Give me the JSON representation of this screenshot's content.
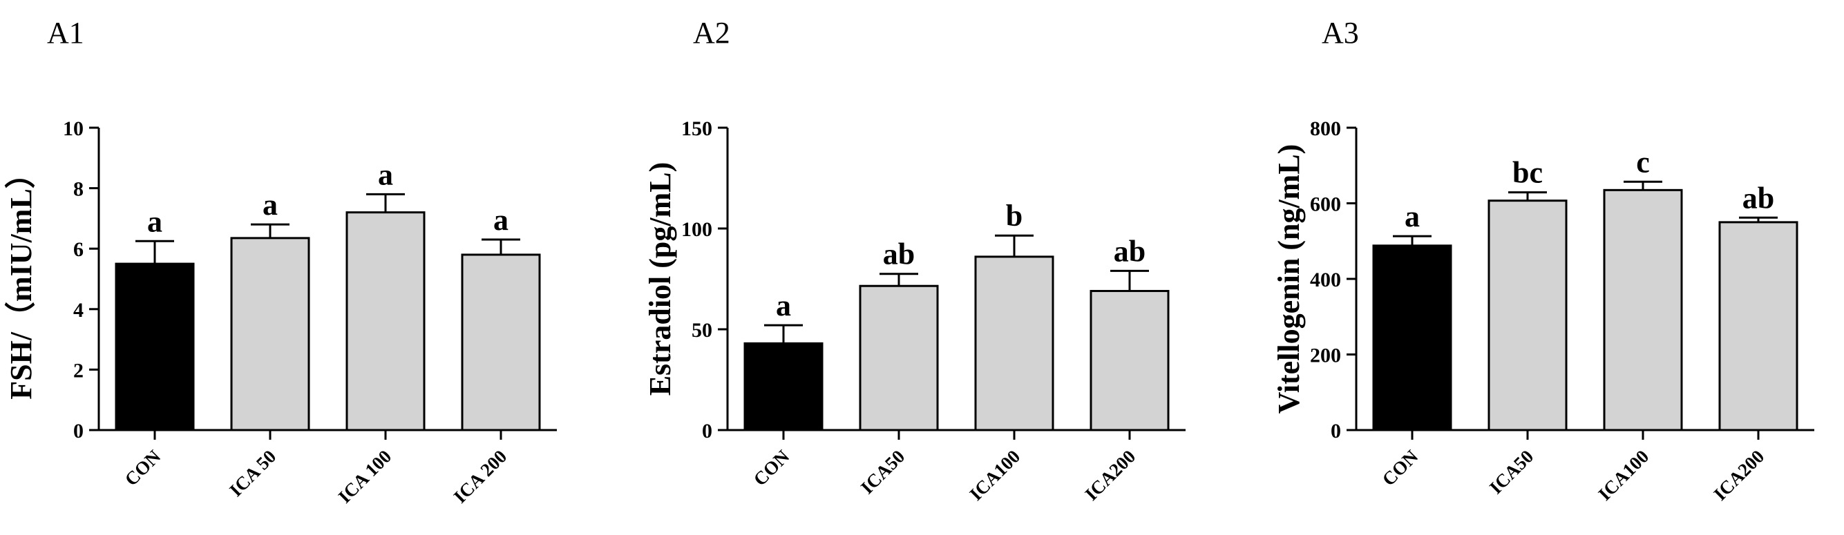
{
  "chart_data": [
    {
      "type": "bar",
      "panel_label": "A1",
      "ylabel": "FSH/（mIU/mL）",
      "categories": [
        "CON",
        "ICA 50",
        "ICA 100",
        "ICA 200"
      ],
      "values": [
        5.5,
        6.35,
        7.2,
        5.8
      ],
      "errors": [
        0.75,
        0.45,
        0.6,
        0.5
      ],
      "significance": [
        "a",
        "a",
        "a",
        "a"
      ],
      "ylim": [
        0,
        10
      ],
      "yticks": [
        "0",
        "2",
        "4",
        "6",
        "8",
        "10"
      ],
      "colors": [
        "#000000",
        "#d3d3d3",
        "#d3d3d3",
        "#d3d3d3"
      ]
    },
    {
      "type": "bar",
      "panel_label": "A2",
      "ylabel": "Estradiol (pg/mL)",
      "categories": [
        "CON",
        "ICA50",
        "ICA100",
        "ICA200"
      ],
      "values": [
        43,
        71.5,
        86,
        69
      ],
      "errors": [
        9,
        6,
        10.5,
        10
      ],
      "significance": [
        "a",
        "ab",
        "b",
        "ab"
      ],
      "ylim": [
        0,
        150
      ],
      "yticks": [
        "0",
        "50",
        "100",
        "150"
      ],
      "colors": [
        "#000000",
        "#d3d3d3",
        "#d3d3d3",
        "#d3d3d3"
      ]
    },
    {
      "type": "bar",
      "panel_label": "A3",
      "ylabel": "Vitellogenin (ng/mL)",
      "categories": [
        "CON",
        "ICA50",
        "ICA100",
        "ICA200"
      ],
      "values": [
        488,
        607,
        635,
        550
      ],
      "errors": [
        25,
        22,
        22,
        12
      ],
      "significance": [
        "a",
        "bc",
        "c",
        "ab"
      ],
      "ylim": [
        0,
        800
      ],
      "yticks": [
        "0",
        "200",
        "400",
        "600",
        "800"
      ],
      "colors": [
        "#000000",
        "#d3d3d3",
        "#d3d3d3",
        "#d3d3d3"
      ]
    }
  ]
}
